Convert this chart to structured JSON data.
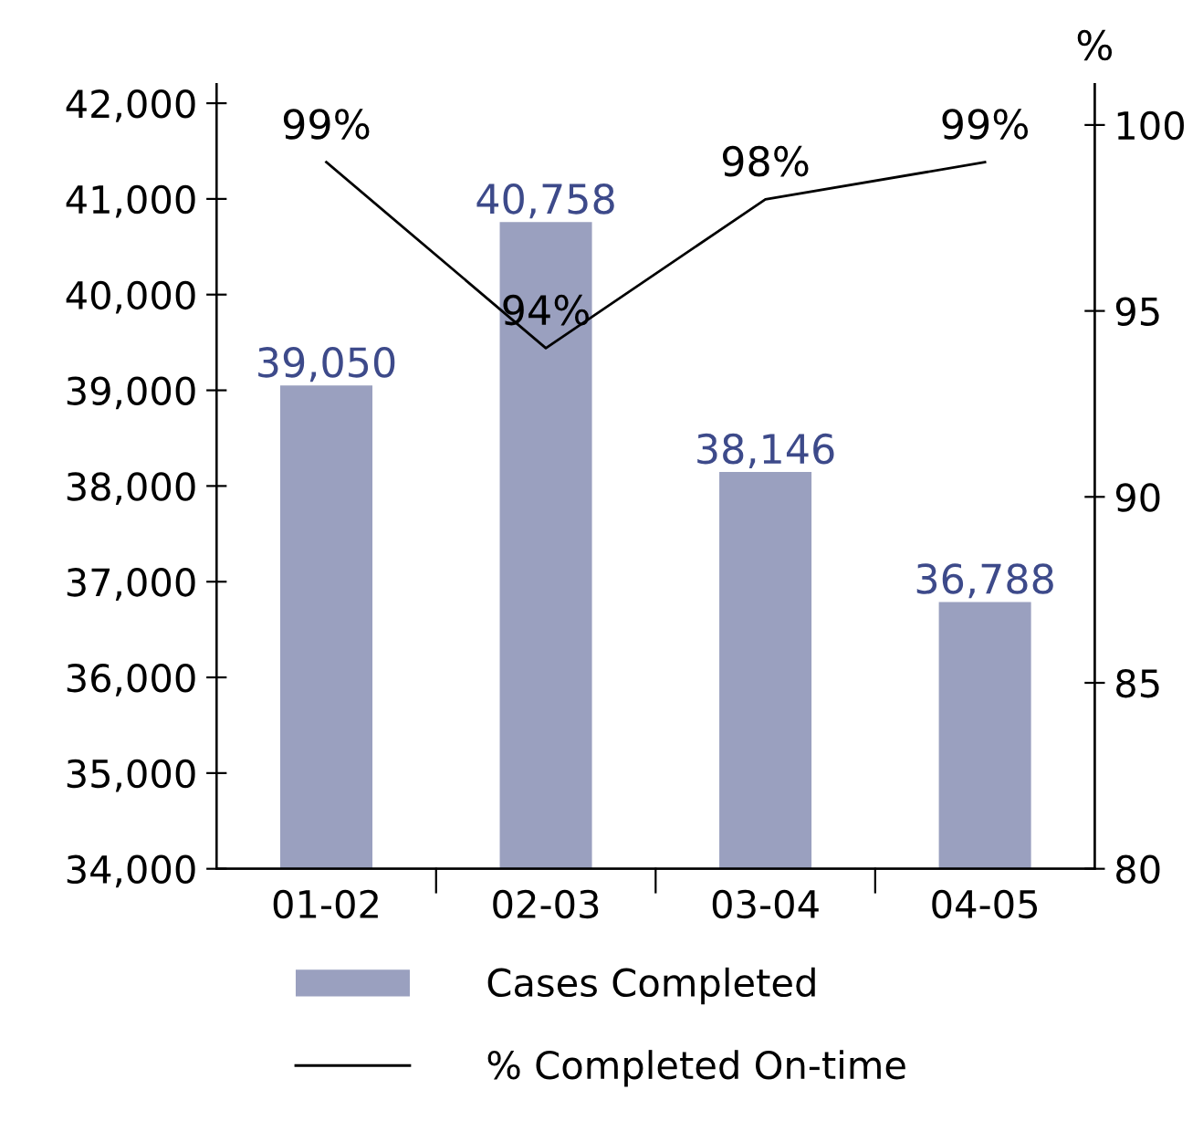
{
  "chart_data": {
    "type": "bar",
    "categories": [
      "01-02",
      "02-03",
      "03-04",
      "04-05"
    ],
    "series": [
      {
        "name": "Cases Completed",
        "color": "#9aa0bf",
        "values": [
          39050,
          40758,
          38146,
          36788
        ],
        "value_labels": [
          "39,050",
          "40,758",
          "38,146",
          "36,788"
        ]
      },
      {
        "name": "% Completed On-time",
        "type": "line",
        "axis": "y2",
        "color": "#000000",
        "values": [
          99,
          94,
          98,
          99
        ],
        "value_labels": [
          "99%",
          "94%",
          "98%",
          "99%"
        ]
      }
    ],
    "ylim": [
      34000,
      42200
    ],
    "yticks": [
      {
        "value": 34000,
        "label": "34,000"
      },
      {
        "value": 35000,
        "label": "35,000"
      },
      {
        "value": 36000,
        "label": "36,000"
      },
      {
        "value": 37000,
        "label": "37,000"
      },
      {
        "value": 38000,
        "label": "38,000"
      },
      {
        "value": 39000,
        "label": "39,000"
      },
      {
        "value": 40000,
        "label": "40,000"
      },
      {
        "value": 41000,
        "label": "41,000"
      },
      {
        "value": 42000,
        "label": "42,000"
      }
    ],
    "y2lim": [
      80,
      101.1
    ],
    "y2ticks": [
      80,
      85,
      90,
      95,
      100
    ],
    "y2label": "%",
    "legend": "bottom",
    "grid": false,
    "marker": "none",
    "line_style": "solid"
  }
}
